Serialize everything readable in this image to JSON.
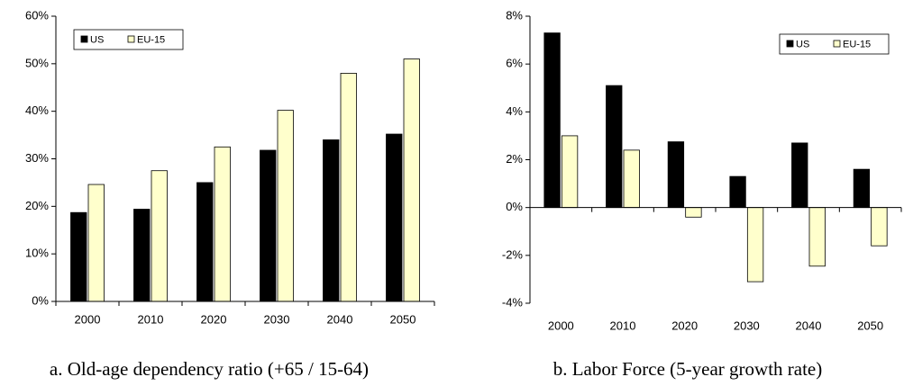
{
  "chart_data": [
    {
      "type": "bar",
      "caption": "a. Old-age dependency ratio (+65 / 15-64)",
      "categories": [
        "2000",
        "2010",
        "2020",
        "2030",
        "2040",
        "2050"
      ],
      "series": [
        {
          "name": "US",
          "color": "#000000",
          "values": [
            18.7,
            19.4,
            25.0,
            31.8,
            34.0,
            35.2
          ]
        },
        {
          "name": "EU-15",
          "color": "#ffffcc",
          "values": [
            24.6,
            27.5,
            32.5,
            40.2,
            48.0,
            51.0
          ]
        }
      ],
      "ylim": [
        0,
        60
      ],
      "yticks": [
        {
          "value": 0,
          "label": "0%"
        },
        {
          "value": 10,
          "label": "10%"
        },
        {
          "value": 20,
          "label": "20%"
        },
        {
          "value": 30,
          "label": "30%"
        },
        {
          "value": 40,
          "label": "40%"
        },
        {
          "value": 50,
          "label": "50%"
        },
        {
          "value": 60,
          "label": "60%"
        }
      ],
      "legend": "top-left",
      "grid": false
    },
    {
      "type": "bar",
      "caption": "b. Labor Force (5-year growth rate)",
      "categories": [
        "2000",
        "2010",
        "2020",
        "2030",
        "2040",
        "2050"
      ],
      "series": [
        {
          "name": "US",
          "color": "#000000",
          "values": [
            7.3,
            5.1,
            2.75,
            1.3,
            2.7,
            1.6
          ]
        },
        {
          "name": "EU-15",
          "color": "#ffffcc",
          "values": [
            3.0,
            2.4,
            -0.4,
            -3.1,
            -2.45,
            -1.6
          ]
        }
      ],
      "ylim": [
        -4,
        8
      ],
      "yticks": [
        {
          "value": -4,
          "label": "-4%"
        },
        {
          "value": -2,
          "label": "-2%"
        },
        {
          "value": 0,
          "label": "0%"
        },
        {
          "value": 2,
          "label": "2%"
        },
        {
          "value": 4,
          "label": "4%"
        },
        {
          "value": 6,
          "label": "6%"
        },
        {
          "value": 8,
          "label": "8%"
        }
      ],
      "legend": "top-right",
      "grid": false
    }
  ]
}
